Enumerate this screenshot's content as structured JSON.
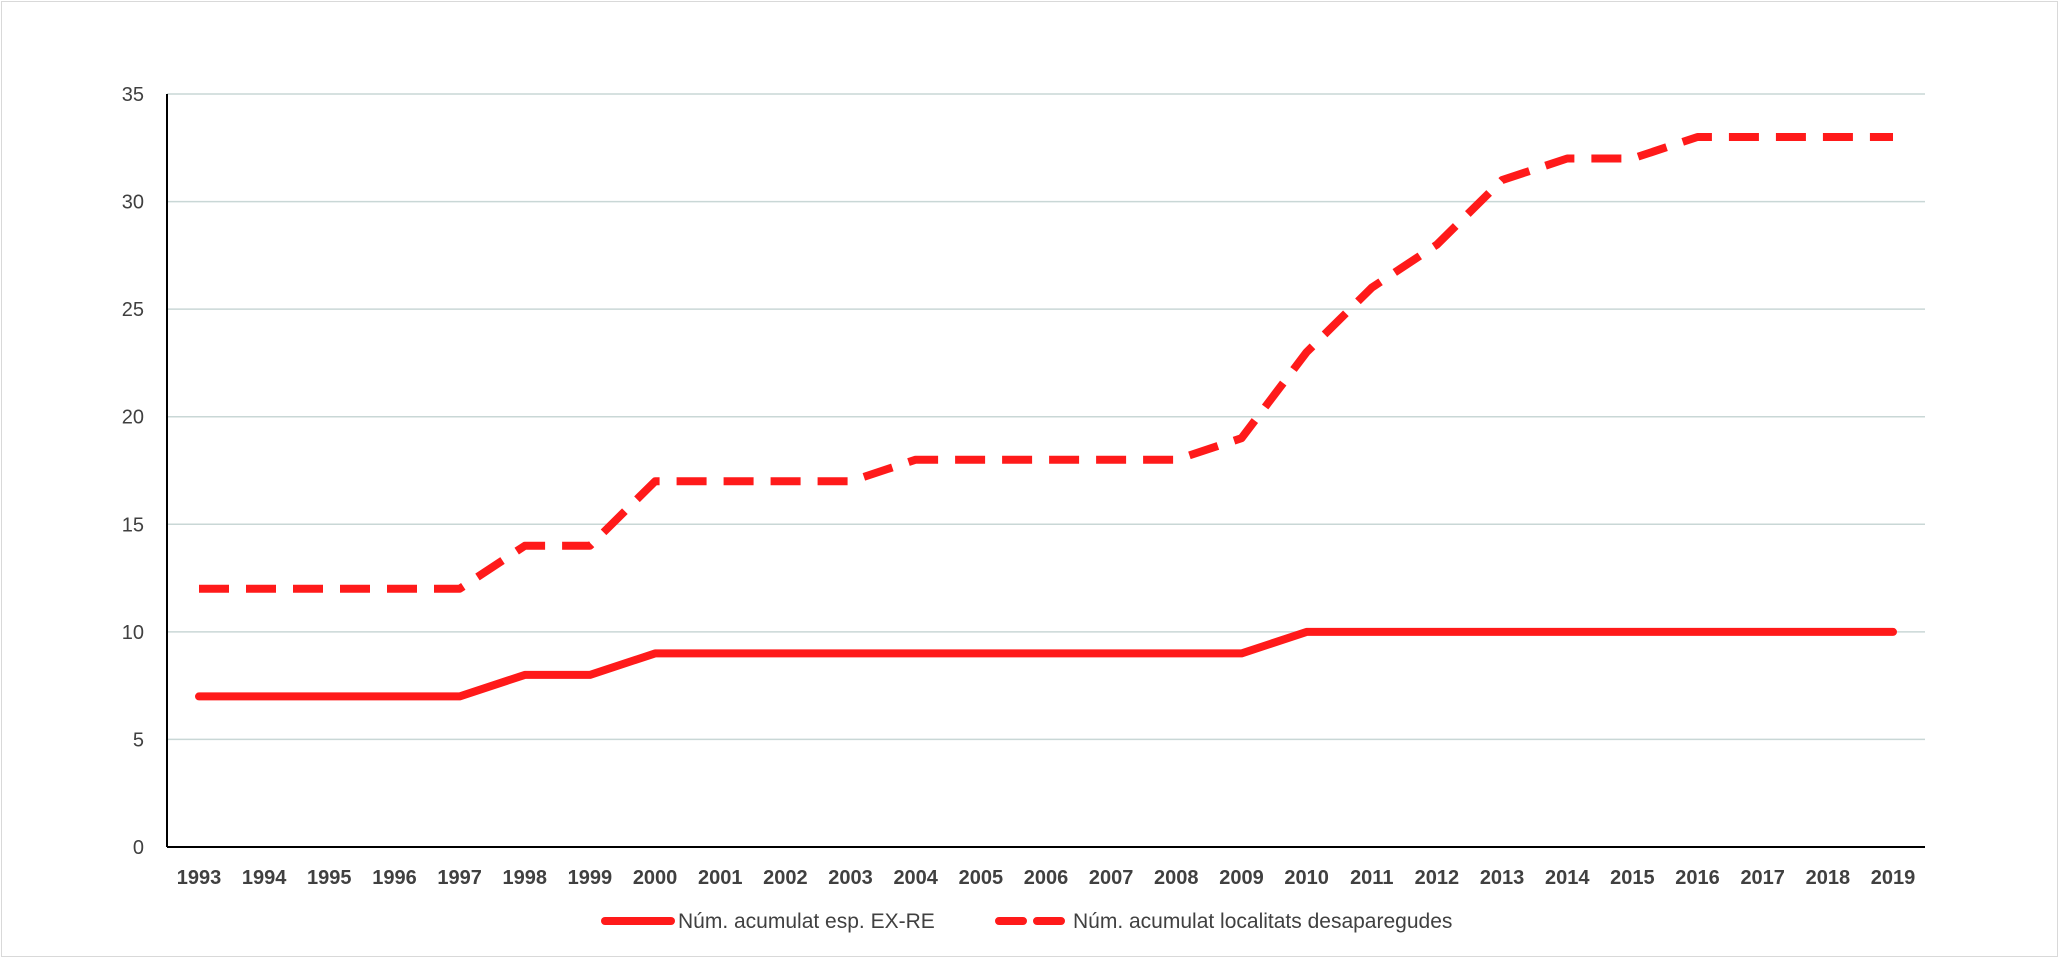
{
  "chart_data": {
    "type": "line",
    "title": "",
    "xlabel": "",
    "ylabel": "",
    "categories": [
      "1993",
      "1994",
      "1995",
      "1996",
      "1997",
      "1998",
      "1999",
      "2000",
      "2001",
      "2002",
      "2003",
      "2004",
      "2005",
      "2006",
      "2007",
      "2008",
      "2009",
      "2010",
      "2011",
      "2012",
      "2013",
      "2014",
      "2015",
      "2016",
      "2017",
      "2018",
      "2019"
    ],
    "ylim": [
      0,
      35
    ],
    "yticks": [
      "0",
      "5",
      "10",
      "15",
      "20",
      "25",
      "30",
      "35"
    ],
    "grid": true,
    "legend_position": "bottom",
    "series": [
      {
        "name": "Núm. acumulat esp. EX-RE",
        "style": "solid",
        "color": "#ff1a1a",
        "values": [
          7,
          7,
          7,
          7,
          7,
          8,
          8,
          9,
          9,
          9,
          9,
          9,
          9,
          9,
          9,
          9,
          9,
          10,
          10,
          10,
          10,
          10,
          10,
          10,
          10,
          10,
          10
        ]
      },
      {
        "name": "Núm. acumulat localitats desaparegudes",
        "style": "dashed",
        "color": "#ff1a1a",
        "values": [
          12,
          12,
          12,
          12,
          12,
          14,
          14,
          17,
          17,
          17,
          17,
          18,
          18,
          18,
          18,
          18,
          19,
          23,
          26,
          28,
          31,
          32,
          32,
          33,
          33,
          33,
          33
        ]
      }
    ]
  }
}
